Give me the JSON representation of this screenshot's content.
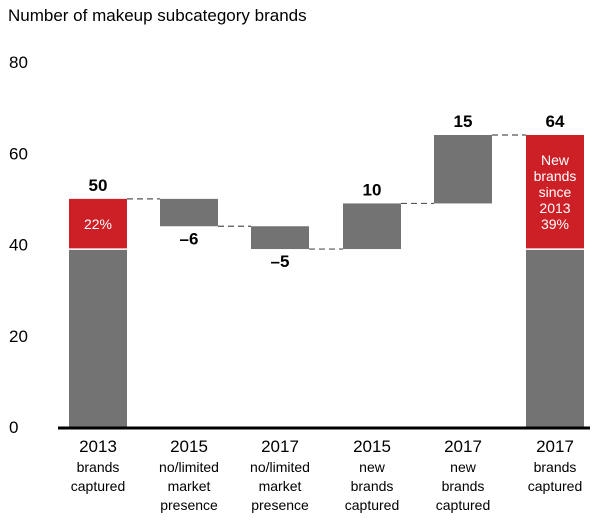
{
  "chart_data": {
    "type": "bar",
    "subtype": "waterfall",
    "title": "Number of makeup subcategory brands",
    "ylim": [
      0,
      80
    ],
    "yticks": [
      "0",
      "20",
      "40",
      "60",
      "80"
    ],
    "grid": false,
    "categories": [
      {
        "top": "2013",
        "sub": [
          "brands",
          "captured"
        ]
      },
      {
        "top": "2015",
        "sub": [
          "no/limited",
          "market",
          "presence"
        ]
      },
      {
        "top": "2017",
        "sub": [
          "no/limited",
          "market",
          "presence"
        ]
      },
      {
        "top": "2015",
        "sub": [
          "new",
          "brands",
          "captured"
        ]
      },
      {
        "top": "2017",
        "sub": [
          "new",
          "brands",
          "captured"
        ]
      },
      {
        "top": "2017",
        "sub": [
          "brands",
          "captured"
        ]
      }
    ],
    "bars": [
      {
        "kind": "total",
        "value": 50,
        "label": "50",
        "highlight": 11,
        "inner_label": [
          "22%"
        ]
      },
      {
        "kind": "delta",
        "value": -6,
        "label": "–6"
      },
      {
        "kind": "delta",
        "value": -5,
        "label": "–5"
      },
      {
        "kind": "delta",
        "value": 10,
        "label": "10"
      },
      {
        "kind": "delta",
        "value": 15,
        "label": "15"
      },
      {
        "kind": "total",
        "value": 64,
        "label": "64",
        "highlight": 25,
        "inner_label": [
          "New",
          "brands",
          "since",
          "2013",
          "39%"
        ]
      }
    ],
    "colors": {
      "bar": "#737373",
      "highlight": "#cc1f26",
      "connector": "#555555",
      "axis": "#000000"
    }
  }
}
